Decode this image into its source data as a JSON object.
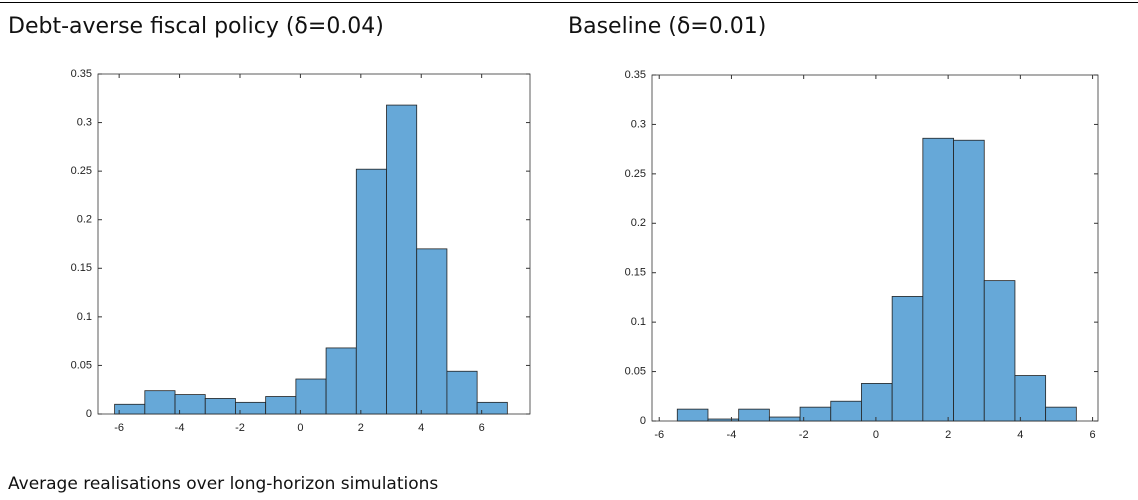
{
  "chart_data": [
    {
      "type": "histogram",
      "title": "Debt-averse fiscal policy (δ=0.04)",
      "bins": [
        -6.15,
        -5.15,
        -4.15,
        -3.15,
        -2.15,
        -1.15,
        -0.15,
        0.85,
        1.85,
        2.85,
        3.85,
        4.85,
        5.85,
        6.85
      ],
      "values": [
        0.01,
        0.024,
        0.02,
        0.016,
        0.012,
        0.018,
        0.036,
        0.068,
        0.252,
        0.318,
        0.17,
        0.044,
        0.012
      ],
      "color": "#66a8d8",
      "xlim": [
        -6.7,
        7.6
      ],
      "xticks": [
        -6,
        -4,
        -2,
        0,
        2,
        4,
        6
      ],
      "ylim": [
        0,
        0.35
      ],
      "yticks": [
        0,
        0.05,
        0.1,
        0.15,
        0.2,
        0.25,
        0.3,
        0.35
      ]
    },
    {
      "type": "histogram",
      "title": "Baseline (δ=0.01)",
      "bins": [
        -5.5,
        -4.65,
        -3.8,
        -2.95,
        -2.1,
        -1.25,
        -0.4,
        0.45,
        1.3,
        2.15,
        3.0,
        3.85,
        4.7,
        5.55
      ],
      "values": [
        0.012,
        0.002,
        0.012,
        0.004,
        0.014,
        0.02,
        0.038,
        0.126,
        0.286,
        0.284,
        0.142,
        0.046,
        0.014
      ],
      "color": "#66a8d8",
      "xlim": [
        -6.2,
        6.15
      ],
      "xticks": [
        -6,
        -4,
        -2,
        0,
        2,
        4,
        6
      ],
      "ylim": [
        0,
        0.35
      ],
      "yticks": [
        0,
        0.05,
        0.1,
        0.15,
        0.2,
        0.25,
        0.3,
        0.35
      ]
    }
  ],
  "caption": "Average realisations over long-horizon simulations"
}
